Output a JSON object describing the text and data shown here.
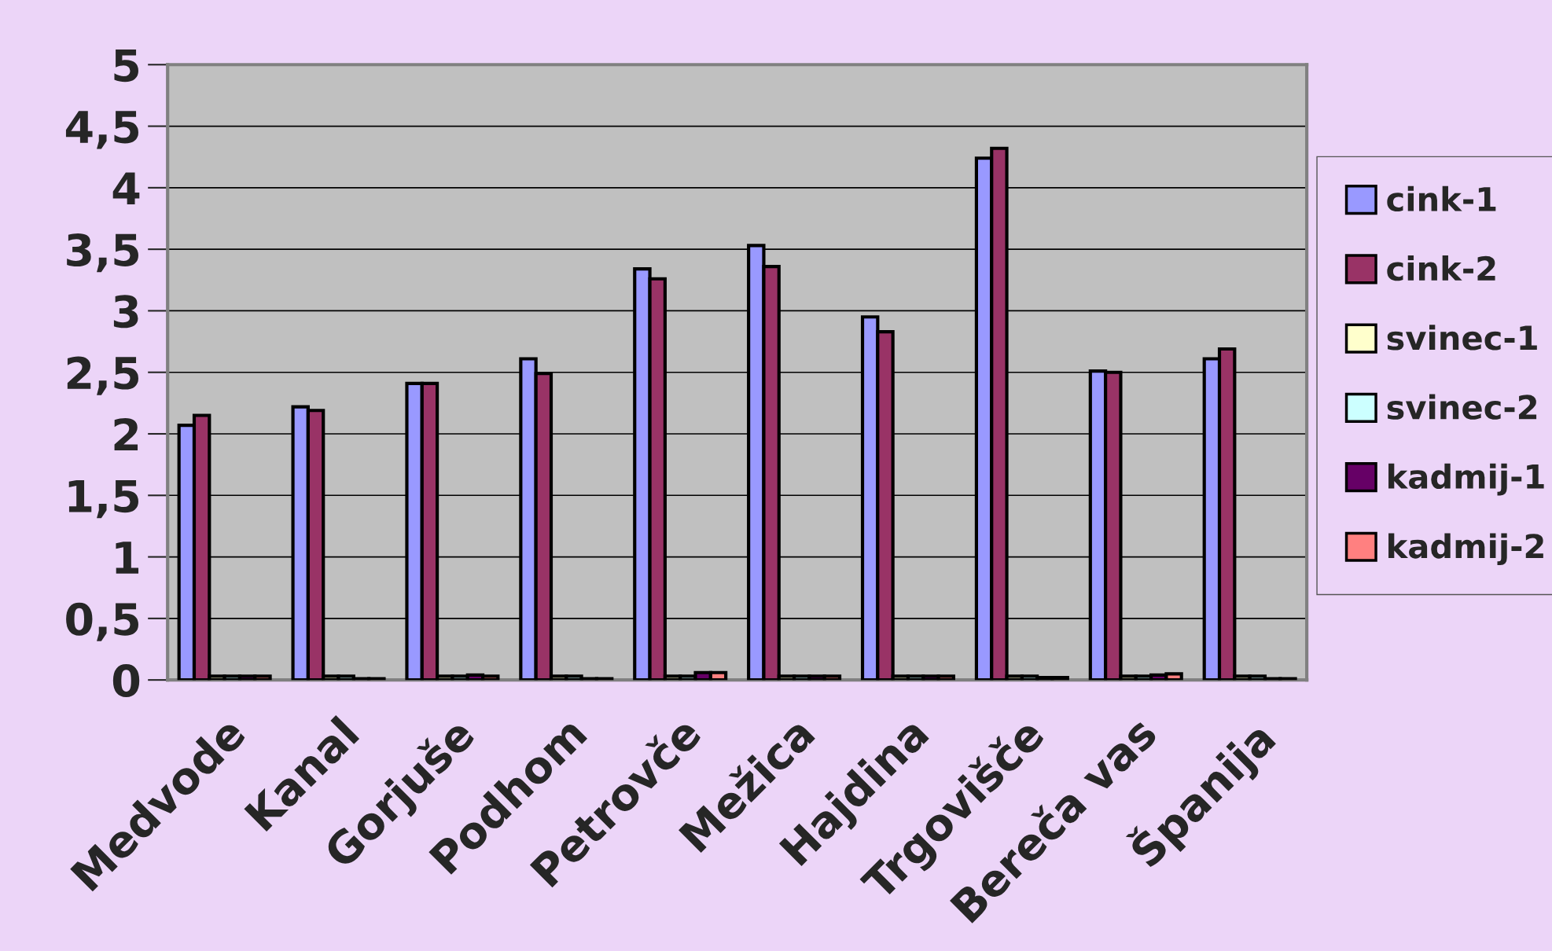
{
  "chart_data": {
    "type": "bar",
    "categories": [
      "Medvode",
      "Kanal",
      "Gorjuše",
      "Podhom",
      "Petrovče",
      "Mežica",
      "Hajdina",
      "Trgovišče",
      "Bereča vas",
      "Španija"
    ],
    "series": [
      {
        "name": "cink-1",
        "color": "#9999ff",
        "values": [
          2.07,
          2.22,
          2.41,
          2.61,
          3.34,
          3.53,
          2.95,
          4.24,
          2.51,
          2.61
        ]
      },
      {
        "name": "cink-2",
        "color": "#993366",
        "values": [
          2.15,
          2.19,
          2.41,
          2.49,
          3.26,
          3.36,
          2.83,
          4.32,
          2.5,
          2.69
        ]
      },
      {
        "name": "svinec-1",
        "color": "#ffffcc",
        "values": [
          0.03,
          0.03,
          0.03,
          0.03,
          0.03,
          0.03,
          0.03,
          0.03,
          0.03,
          0.03
        ]
      },
      {
        "name": "svinec-2",
        "color": "#ccffff",
        "values": [
          0.03,
          0.03,
          0.03,
          0.03,
          0.03,
          0.03,
          0.03,
          0.03,
          0.03,
          0.03
        ]
      },
      {
        "name": "kadmij-1",
        "color": "#660066",
        "values": [
          0.03,
          0.01,
          0.04,
          0.01,
          0.06,
          0.03,
          0.03,
          0.02,
          0.04,
          0.01
        ]
      },
      {
        "name": "kadmij-2",
        "color": "#ff8080",
        "values": [
          0.03,
          0.01,
          0.03,
          0.01,
          0.06,
          0.03,
          0.03,
          0.02,
          0.05,
          0.01
        ]
      }
    ],
    "ylim": [
      0,
      5
    ],
    "yticks": [
      0,
      {
        "value": 0.5,
        "label": "0,5"
      },
      1,
      {
        "value": 1.5,
        "label": "1,5"
      },
      2,
      {
        "value": 2.5,
        "label": "2,5"
      },
      3,
      {
        "value": 3.5,
        "label": "3,5"
      },
      4,
      {
        "value": 4.5,
        "label": "4,5"
      },
      5
    ],
    "grid": "y",
    "legend": "right"
  }
}
